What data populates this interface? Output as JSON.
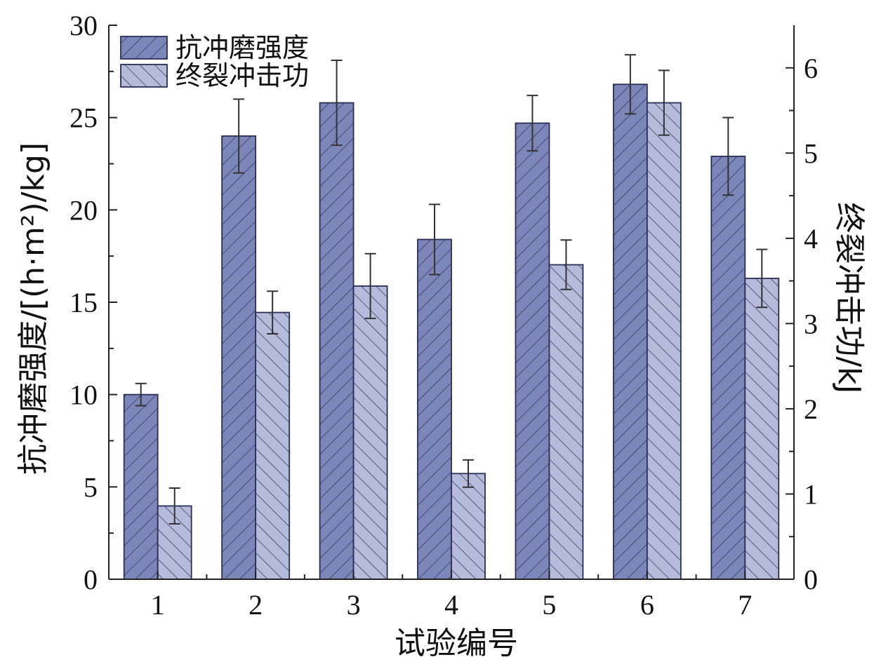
{
  "chart_data": {
    "type": "bar",
    "categories": [
      "1",
      "2",
      "3",
      "4",
      "5",
      "6",
      "7"
    ],
    "xlabel": "试验编号",
    "ylabel_left": "抗冲磨强度/[(h·m²)/kg]",
    "ylabel_right": "终裂冲击功/kJ",
    "ylim_left": [
      0,
      30
    ],
    "ylim_right": [
      0,
      6.5
    ],
    "yticks_left": [
      "0",
      "5",
      "10",
      "15",
      "20",
      "25",
      "30"
    ],
    "yticks_right": [
      "0",
      "1",
      "2",
      "3",
      "4",
      "5",
      "6"
    ],
    "legend_position": "top-left",
    "series": [
      {
        "name": "抗冲磨强度",
        "axis": "left",
        "values": [
          10.0,
          24.0,
          25.8,
          18.4,
          24.7,
          26.8,
          22.9
        ],
        "errors": [
          0.6,
          2.0,
          2.3,
          1.9,
          1.5,
          1.6,
          2.1
        ],
        "color": "#7c86b8",
        "hatch": "forward"
      },
      {
        "name": "终裂冲击功",
        "axis": "right",
        "values": [
          0.86,
          3.13,
          3.44,
          1.24,
          3.69,
          5.59,
          3.53
        ],
        "errors": [
          0.21,
          0.25,
          0.38,
          0.16,
          0.29,
          0.38,
          0.34
        ],
        "color": "#b6bbdb",
        "hatch": "backward"
      }
    ]
  }
}
